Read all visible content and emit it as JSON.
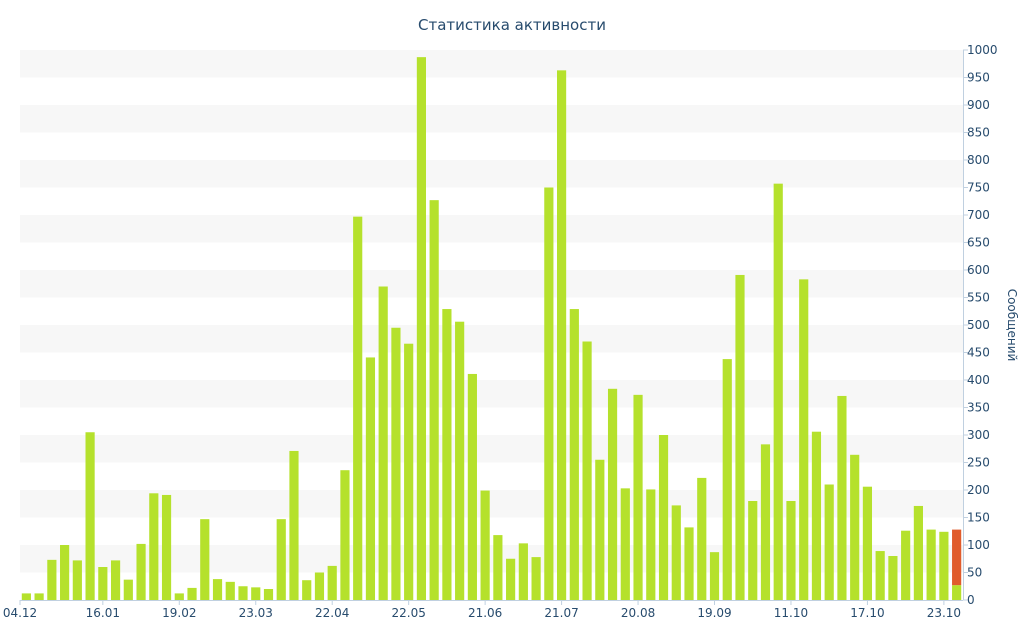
{
  "chart_data": {
    "type": "bar",
    "title": "Статистика активности",
    "ylabel": "Сообщений",
    "xlabel": "",
    "ylim": [
      0,
      1000
    ],
    "ytick_step": 50,
    "x_tick_labels": [
      {
        "index": 0,
        "label": "04.12"
      },
      {
        "index": 6,
        "label": "16.01"
      },
      {
        "index": 12,
        "label": "19.02"
      },
      {
        "index": 18,
        "label": "23.03"
      },
      {
        "index": 24,
        "label": "22.04"
      },
      {
        "index": 30,
        "label": "22.05"
      },
      {
        "index": 36,
        "label": "21.06"
      },
      {
        "index": 42,
        "label": "21.07"
      },
      {
        "index": 48,
        "label": "20.08"
      },
      {
        "index": 54,
        "label": "19.09"
      },
      {
        "index": 60,
        "label": "11.10"
      },
      {
        "index": 66,
        "label": "17.10"
      },
      {
        "index": 72,
        "label": "23.10"
      }
    ],
    "values": [
      12,
      12,
      73,
      100,
      72,
      305,
      60,
      72,
      37,
      102,
      194,
      191,
      12,
      22,
      147,
      38,
      33,
      25,
      23,
      20,
      147,
      271,
      36,
      50,
      62,
      236,
      697,
      441,
      570,
      495,
      466,
      987,
      727,
      529,
      506,
      411,
      199,
      118,
      75,
      103,
      78,
      750,
      963,
      529,
      470,
      255,
      384,
      203,
      373,
      201,
      300,
      172,
      132,
      222,
      87,
      438,
      591,
      180,
      283,
      757,
      180,
      583,
      306,
      210,
      371,
      264,
      206,
      89,
      80,
      126,
      171,
      128,
      124,
      27
    ],
    "highlight": {
      "index": 73,
      "total": 128,
      "highlight_value": 101
    },
    "colors": {
      "bar": "#b5e12c",
      "highlight": "#e05b2b",
      "band": "#f7f7f7",
      "text": "#274b6d",
      "axis": "#c0d0e0"
    }
  }
}
